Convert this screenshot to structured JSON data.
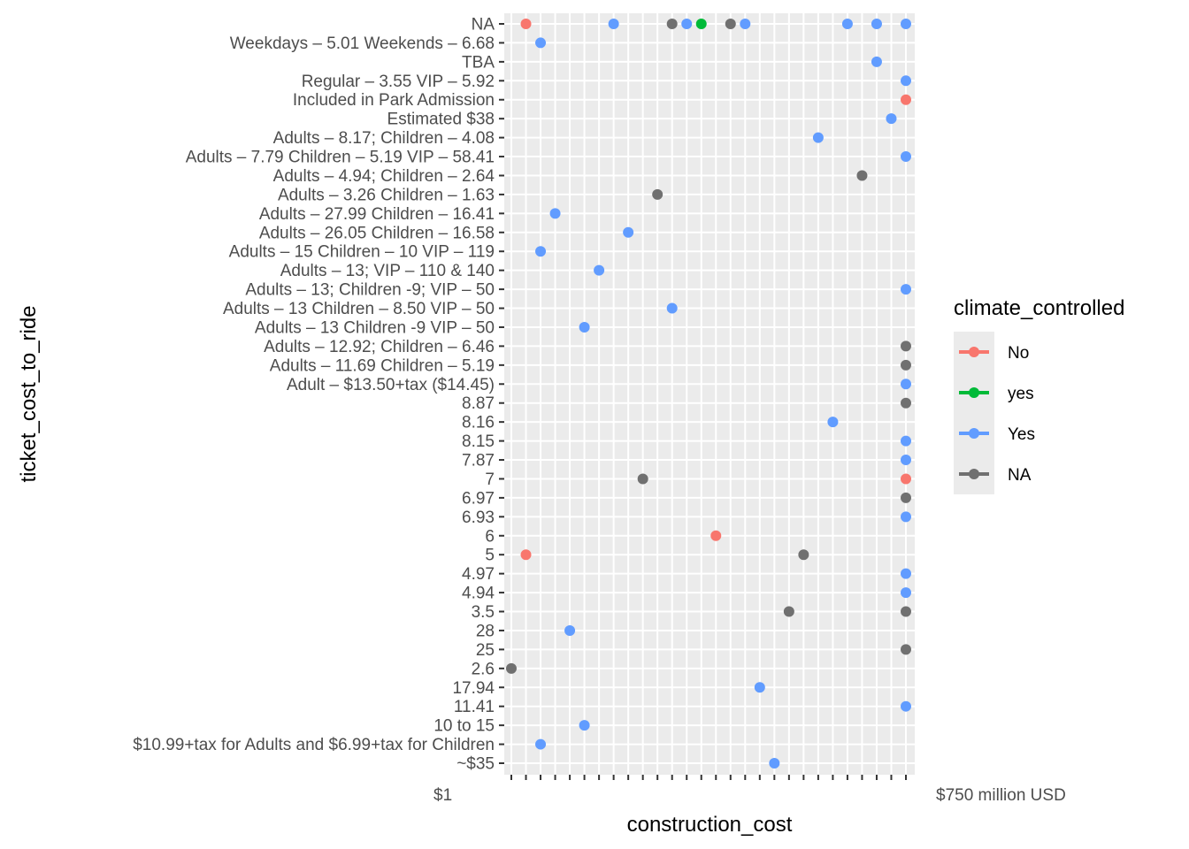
{
  "chart_data": {
    "type": "scatter",
    "xlabel": "construction_cost",
    "ylabel": "ticket_cost_to_ride",
    "x_tick_count": 28,
    "x_last_tick_label": "$750 million USD",
    "x_first_tick_label": "$1",
    "y_categories": [
      "~$35",
      "$10.99+tax for Adults and $6.99+tax for Children",
      "10 to 15",
      "11.41",
      "17.94",
      "2.6",
      "25",
      "28",
      "3.5",
      "4.94",
      "4.97",
      "5",
      "6",
      "6.93",
      "6.97",
      "7",
      "7.87",
      "8.15",
      "8.16",
      "8.87",
      "Adult – $13.50+tax ($14.45)",
      "Adults – 11.69 Children – 5.19",
      "Adults – 12.92; Children – 6.46",
      "Adults – 13 Children -9 VIP – 50",
      "Adults – 13 Children – 8.50 VIP – 50",
      "Adults – 13; Children -9; VIP – 50",
      "Adults – 13; VIP – 110 & 140",
      "Adults – 15 Children – 10 VIP – 119",
      "Adults – 26.05 Children – 16.58",
      "Adults – 27.99 Children – 16.41",
      "Adults – 3.26 Children – 1.63",
      "Adults – 4.94; Children – 2.64",
      "Adults – 7.79 Children – 5.19 VIP – 58.41",
      "Adults – 8.17; Children – 4.08",
      "Estimated $38",
      "Included in Park Admission",
      "Regular – 3.55 VIP – 5.92",
      "TBA",
      "Weekdays – 5.01 Weekends – 6.68",
      "NA"
    ],
    "series": [
      {
        "name": "No",
        "color": "#F8766D",
        "points": [
          {
            "x": 2,
            "y": "NA"
          },
          {
            "x": 2,
            "y": "5"
          },
          {
            "x": 15,
            "y": "6"
          },
          {
            "x": 28,
            "y": "7"
          },
          {
            "x": 28,
            "y": "Included in Park Admission"
          }
        ]
      },
      {
        "name": "yes",
        "color": "#00BA38",
        "points": [
          {
            "x": 14,
            "y": "NA"
          }
        ]
      },
      {
        "name": "Yes",
        "color": "#619CFF",
        "points": [
          {
            "x": 8,
            "y": "NA"
          },
          {
            "x": 13,
            "y": "NA"
          },
          {
            "x": 17,
            "y": "NA"
          },
          {
            "x": 24,
            "y": "NA"
          },
          {
            "x": 26,
            "y": "NA"
          },
          {
            "x": 28,
            "y": "NA"
          },
          {
            "x": 3,
            "y": "Weekdays – 5.01 Weekends – 6.68"
          },
          {
            "x": 26,
            "y": "TBA"
          },
          {
            "x": 28,
            "y": "Regular – 3.55 VIP – 5.92"
          },
          {
            "x": 27,
            "y": "Estimated $38"
          },
          {
            "x": 22,
            "y": "Adults – 8.17; Children – 4.08"
          },
          {
            "x": 28,
            "y": "Adults – 7.79 Children – 5.19 VIP – 58.41"
          },
          {
            "x": 4,
            "y": "Adults – 27.99 Children – 16.41"
          },
          {
            "x": 9,
            "y": "Adults – 26.05 Children – 16.58"
          },
          {
            "x": 3,
            "y": "Adults – 15 Children – 10 VIP – 119"
          },
          {
            "x": 7,
            "y": "Adults – 13; VIP – 110 & 140"
          },
          {
            "x": 28,
            "y": "Adults – 13; Children -9; VIP – 50"
          },
          {
            "x": 12,
            "y": "Adults – 13 Children – 8.50 VIP – 50"
          },
          {
            "x": 6,
            "y": "Adults – 13 Children -9 VIP – 50"
          },
          {
            "x": 28,
            "y": "Adult – $13.50+tax ($14.45)"
          },
          {
            "x": 23,
            "y": "8.16"
          },
          {
            "x": 28,
            "y": "8.15"
          },
          {
            "x": 28,
            "y": "7.87"
          },
          {
            "x": 28,
            "y": "6.93"
          },
          {
            "x": 28,
            "y": "4.97"
          },
          {
            "x": 28,
            "y": "4.94"
          },
          {
            "x": 5,
            "y": "28"
          },
          {
            "x": 18,
            "y": "17.94"
          },
          {
            "x": 28,
            "y": "11.41"
          },
          {
            "x": 6,
            "y": "10 to 15"
          },
          {
            "x": 3,
            "y": "$10.99+tax for Adults and $6.99+tax for Children"
          },
          {
            "x": 19,
            "y": "~$35"
          }
        ]
      },
      {
        "name": "NA",
        "color": "#707070",
        "points": [
          {
            "x": 12,
            "y": "NA"
          },
          {
            "x": 16,
            "y": "NA"
          },
          {
            "x": 25,
            "y": "Adults – 4.94; Children – 2.64"
          },
          {
            "x": 11,
            "y": "Adults – 3.26 Children – 1.63"
          },
          {
            "x": 28,
            "y": "Adults – 12.92; Children – 6.46"
          },
          {
            "x": 28,
            "y": "Adults – 11.69 Children – 5.19"
          },
          {
            "x": 28,
            "y": "8.87"
          },
          {
            "x": 10,
            "y": "7"
          },
          {
            "x": 28,
            "y": "6.97"
          },
          {
            "x": 21,
            "y": "5"
          },
          {
            "x": 20,
            "y": "3.5"
          },
          {
            "x": 28,
            "y": "3.5"
          },
          {
            "x": 28,
            "y": "25"
          },
          {
            "x": 1,
            "y": "2.6"
          }
        ]
      }
    ],
    "legend": {
      "title": "climate_controlled",
      "position": "right",
      "entries": [
        {
          "label": "No",
          "color": "#F8766D"
        },
        {
          "label": "yes",
          "color": "#00BA38"
        },
        {
          "label": "Yes",
          "color": "#619CFF"
        },
        {
          "label": "NA",
          "color": "#707070"
        }
      ]
    }
  }
}
